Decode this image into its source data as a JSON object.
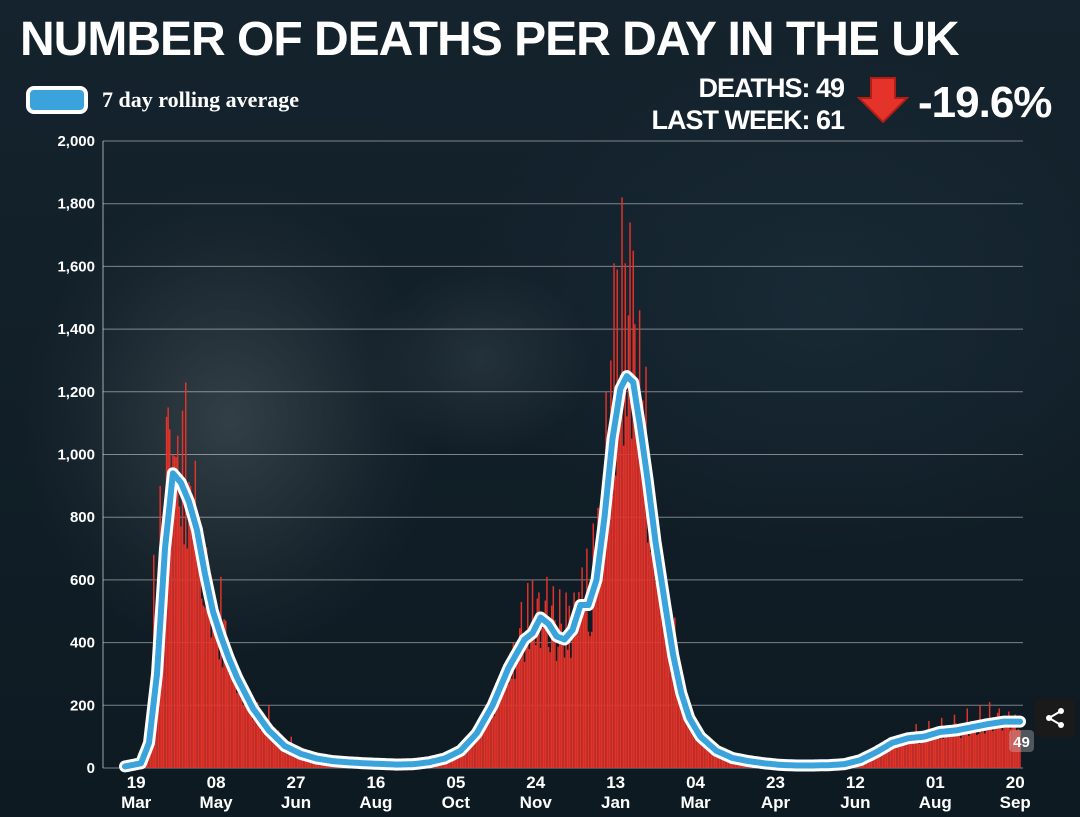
{
  "header": {
    "title": "NUMBER OF DEATHS PER DAY IN THE UK",
    "deaths_line": "DEATHS: 49",
    "last_week_line": "LAST WEEK: 61",
    "change": "-19.6%"
  },
  "legend": {
    "label": "7 day rolling average"
  },
  "colors": {
    "bars": "#e3332a",
    "line": "#3aa3dc",
    "line_outline": "#ffffff",
    "arrow": "#e3332a"
  },
  "icons": {
    "down_arrow": "down-arrow-icon",
    "share": "share-icon"
  },
  "chart_data": {
    "type": "bar",
    "title": "NUMBER OF DEATHS PER DAY IN THE UK",
    "ylim": [
      0,
      2000
    ],
    "yticks": [
      0,
      200,
      400,
      600,
      800,
      1000,
      1200,
      1400,
      1600,
      1800,
      2000
    ],
    "ytick_labels": [
      "0",
      "200",
      "400",
      "600",
      "800",
      "1,000",
      "1,200",
      "1,400",
      "1,600",
      "1,800",
      "2,000"
    ],
    "x_range_days": [
      0,
      560
    ],
    "xticks": [
      {
        "day": 7,
        "day_label": "19",
        "month_label": "Mar"
      },
      {
        "day": 57,
        "day_label": "08",
        "month_label": "May"
      },
      {
        "day": 107,
        "day_label": "27",
        "month_label": "Jun"
      },
      {
        "day": 157,
        "day_label": "16",
        "month_label": "Aug"
      },
      {
        "day": 207,
        "day_label": "05",
        "month_label": "Oct"
      },
      {
        "day": 257,
        "day_label": "24",
        "month_label": "Nov"
      },
      {
        "day": 307,
        "day_label": "13",
        "month_label": "Jan"
      },
      {
        "day": 357,
        "day_label": "04",
        "month_label": "Mar"
      },
      {
        "day": 407,
        "day_label": "23",
        "month_label": "Apr"
      },
      {
        "day": 457,
        "day_label": "12",
        "month_label": "Jun"
      },
      {
        "day": 507,
        "day_label": "01",
        "month_label": "Aug"
      },
      {
        "day": 557,
        "day_label": "20",
        "month_label": "Sep"
      }
    ],
    "rolling_average_knots": [
      [
        0,
        5
      ],
      [
        10,
        15
      ],
      [
        15,
        80
      ],
      [
        20,
        300
      ],
      [
        25,
        700
      ],
      [
        30,
        940
      ],
      [
        35,
        910
      ],
      [
        40,
        850
      ],
      [
        45,
        760
      ],
      [
        50,
        620
      ],
      [
        55,
        500
      ],
      [
        60,
        420
      ],
      [
        65,
        350
      ],
      [
        70,
        290
      ],
      [
        75,
        240
      ],
      [
        80,
        190
      ],
      [
        90,
        120
      ],
      [
        100,
        70
      ],
      [
        110,
        45
      ],
      [
        120,
        30
      ],
      [
        130,
        22
      ],
      [
        140,
        18
      ],
      [
        150,
        15
      ],
      [
        160,
        13
      ],
      [
        170,
        11
      ],
      [
        180,
        12
      ],
      [
        190,
        18
      ],
      [
        200,
        30
      ],
      [
        210,
        55
      ],
      [
        220,
        110
      ],
      [
        230,
        200
      ],
      [
        240,
        320
      ],
      [
        250,
        410
      ],
      [
        255,
        430
      ],
      [
        260,
        480
      ],
      [
        265,
        460
      ],
      [
        270,
        420
      ],
      [
        275,
        410
      ],
      [
        280,
        440
      ],
      [
        285,
        520
      ],
      [
        290,
        520
      ],
      [
        295,
        600
      ],
      [
        300,
        800
      ],
      [
        305,
        1050
      ],
      [
        310,
        1210
      ],
      [
        314,
        1250
      ],
      [
        318,
        1230
      ],
      [
        322,
        1100
      ],
      [
        327,
        920
      ],
      [
        332,
        720
      ],
      [
        338,
        520
      ],
      [
        343,
        360
      ],
      [
        348,
        240
      ],
      [
        353,
        160
      ],
      [
        360,
        100
      ],
      [
        370,
        55
      ],
      [
        380,
        32
      ],
      [
        390,
        22
      ],
      [
        400,
        15
      ],
      [
        410,
        10
      ],
      [
        420,
        8
      ],
      [
        430,
        8
      ],
      [
        440,
        9
      ],
      [
        450,
        12
      ],
      [
        460,
        25
      ],
      [
        470,
        50
      ],
      [
        480,
        80
      ],
      [
        490,
        95
      ],
      [
        500,
        100
      ],
      [
        510,
        115
      ],
      [
        520,
        120
      ],
      [
        530,
        130
      ],
      [
        540,
        140
      ],
      [
        550,
        148
      ],
      [
        560,
        148
      ]
    ],
    "daily_bar_peaks": [
      [
        18,
        680
      ],
      [
        22,
        900
      ],
      [
        26,
        1120
      ],
      [
        27,
        1150
      ],
      [
        28,
        1080
      ],
      [
        30,
        1000
      ],
      [
        33,
        1060
      ],
      [
        36,
        1140
      ],
      [
        38,
        1230
      ],
      [
        41,
        900
      ],
      [
        44,
        980
      ],
      [
        47,
        750
      ],
      [
        52,
        620
      ],
      [
        56,
        480
      ],
      [
        60,
        610
      ],
      [
        63,
        470
      ],
      [
        68,
        330
      ],
      [
        72,
        290
      ],
      [
        78,
        250
      ],
      [
        83,
        210
      ],
      [
        90,
        200
      ],
      [
        96,
        120
      ],
      [
        104,
        100
      ],
      [
        245,
        380
      ],
      [
        248,
        530
      ],
      [
        252,
        590
      ],
      [
        255,
        600
      ],
      [
        259,
        560
      ],
      [
        264,
        610
      ],
      [
        268,
        580
      ],
      [
        272,
        570
      ],
      [
        276,
        560
      ],
      [
        281,
        560
      ],
      [
        286,
        640
      ],
      [
        289,
        700
      ],
      [
        293,
        780
      ],
      [
        296,
        830
      ],
      [
        301,
        1200
      ],
      [
        304,
        1300
      ],
      [
        306,
        1610
      ],
      [
        308,
        1590
      ],
      [
        311,
        1820
      ],
      [
        313,
        1610
      ],
      [
        316,
        1740
      ],
      [
        318,
        1650
      ],
      [
        322,
        1460
      ],
      [
        326,
        1280
      ],
      [
        330,
        920
      ],
      [
        334,
        720
      ],
      [
        338,
        600
      ],
      [
        344,
        480
      ],
      [
        495,
        140
      ],
      [
        503,
        150
      ],
      [
        511,
        160
      ],
      [
        519,
        170
      ],
      [
        527,
        190
      ],
      [
        535,
        200
      ],
      [
        541,
        210
      ],
      [
        547,
        190
      ],
      [
        553,
        180
      ]
    ],
    "end_label": "49"
  }
}
